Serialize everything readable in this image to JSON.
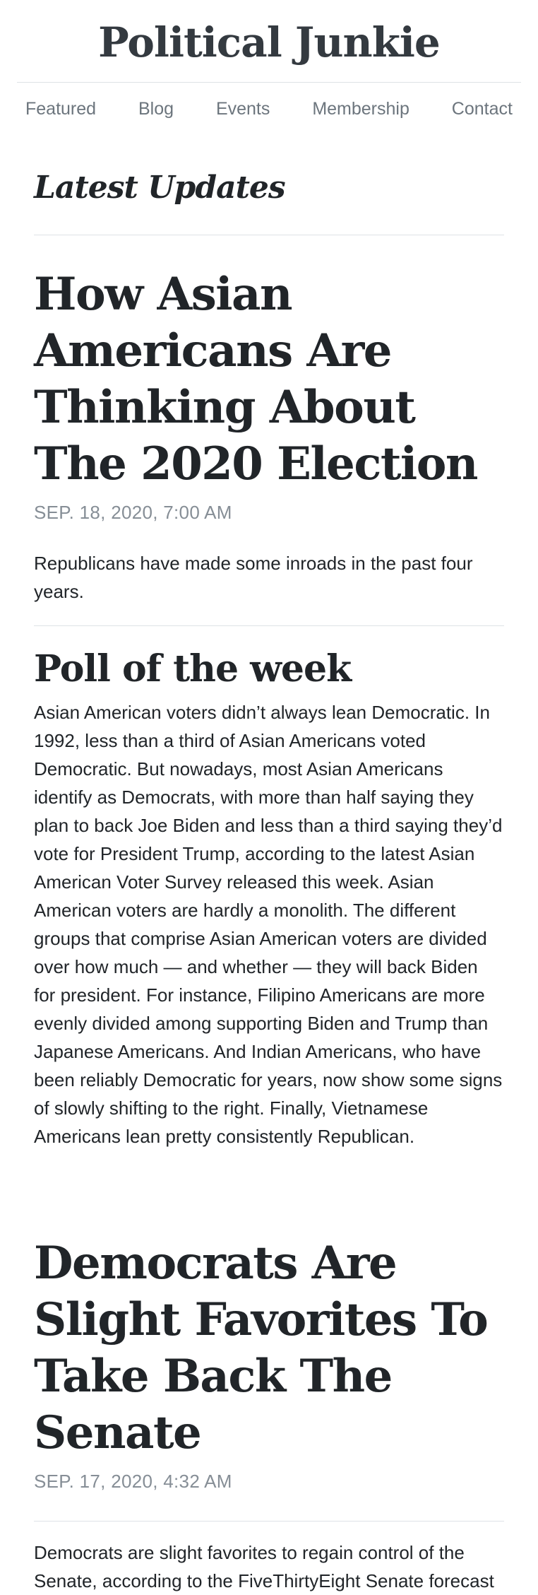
{
  "site": {
    "title": "Political Junkie"
  },
  "nav": {
    "items": [
      {
        "label": "Featured"
      },
      {
        "label": "Blog"
      },
      {
        "label": "Events"
      },
      {
        "label": "Membership"
      },
      {
        "label": "Contact"
      }
    ]
  },
  "main": {
    "section_title": "Latest Updates",
    "posts": [
      {
        "title": "How Asian Americans Are Thinking About The 2020 Election",
        "date": "SEP. 18, 2020, 7:00 AM",
        "summary": "Republicans have made some inroads in the past four years.",
        "sub_title": "Poll of the week",
        "body": "Asian American voters didn’t always lean Democratic. In 1992, less than a third of Asian Americans voted Democratic. But nowadays, most Asian Americans identify as Democrats, with more than half saying they plan to back Joe Biden and less than a third saying they’d vote for President Trump, according to the latest Asian American Voter Survey released this week. Asian American voters are hardly a monolith. The different groups that comprise Asian American voters are divided over how much — and whether — they will back Biden for president. For instance, Filipino Americans are more evenly divided among supporting Biden and Trump than Japanese Americans. And Indian Americans, who have been reliably Democratic for years, now show some signs of slowly shifting to the right. Finally, Vietnamese Americans lean pretty consistently Republican."
      },
      {
        "title": "Democrats Are Slight Favorites To Take Back The Senate",
        "date": "SEP. 17, 2020, 4:32 AM",
        "summary": "Democrats are slight favorites to regain control of the Senate, according to the FiveThirtyEight Senate forecast"
      }
    ]
  }
}
